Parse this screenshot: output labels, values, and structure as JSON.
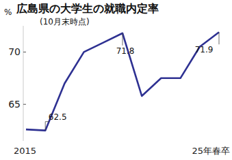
{
  "chart_data": {
    "type": "line",
    "title": "広島県の大学生の就職内定率",
    "subtitle": "(10月末時点)",
    "y_label": "%",
    "categories": [
      "2015",
      null,
      null,
      null,
      null,
      null,
      null,
      null,
      null,
      null,
      "25年春卒"
    ],
    "values": [
      62.6,
      62.5,
      67.0,
      70.0,
      70.9,
      71.8,
      65.8,
      67.5,
      67.5,
      70.5,
      71.9
    ],
    "value_labels": [
      null,
      "62.5",
      null,
      null,
      null,
      "71.8",
      null,
      null,
      null,
      null,
      "71.9"
    ],
    "color": "#2e3192",
    "ylim": [
      61.5,
      72.5
    ],
    "yticks": [
      65,
      70
    ],
    "grid": false,
    "data_labels": true
  }
}
